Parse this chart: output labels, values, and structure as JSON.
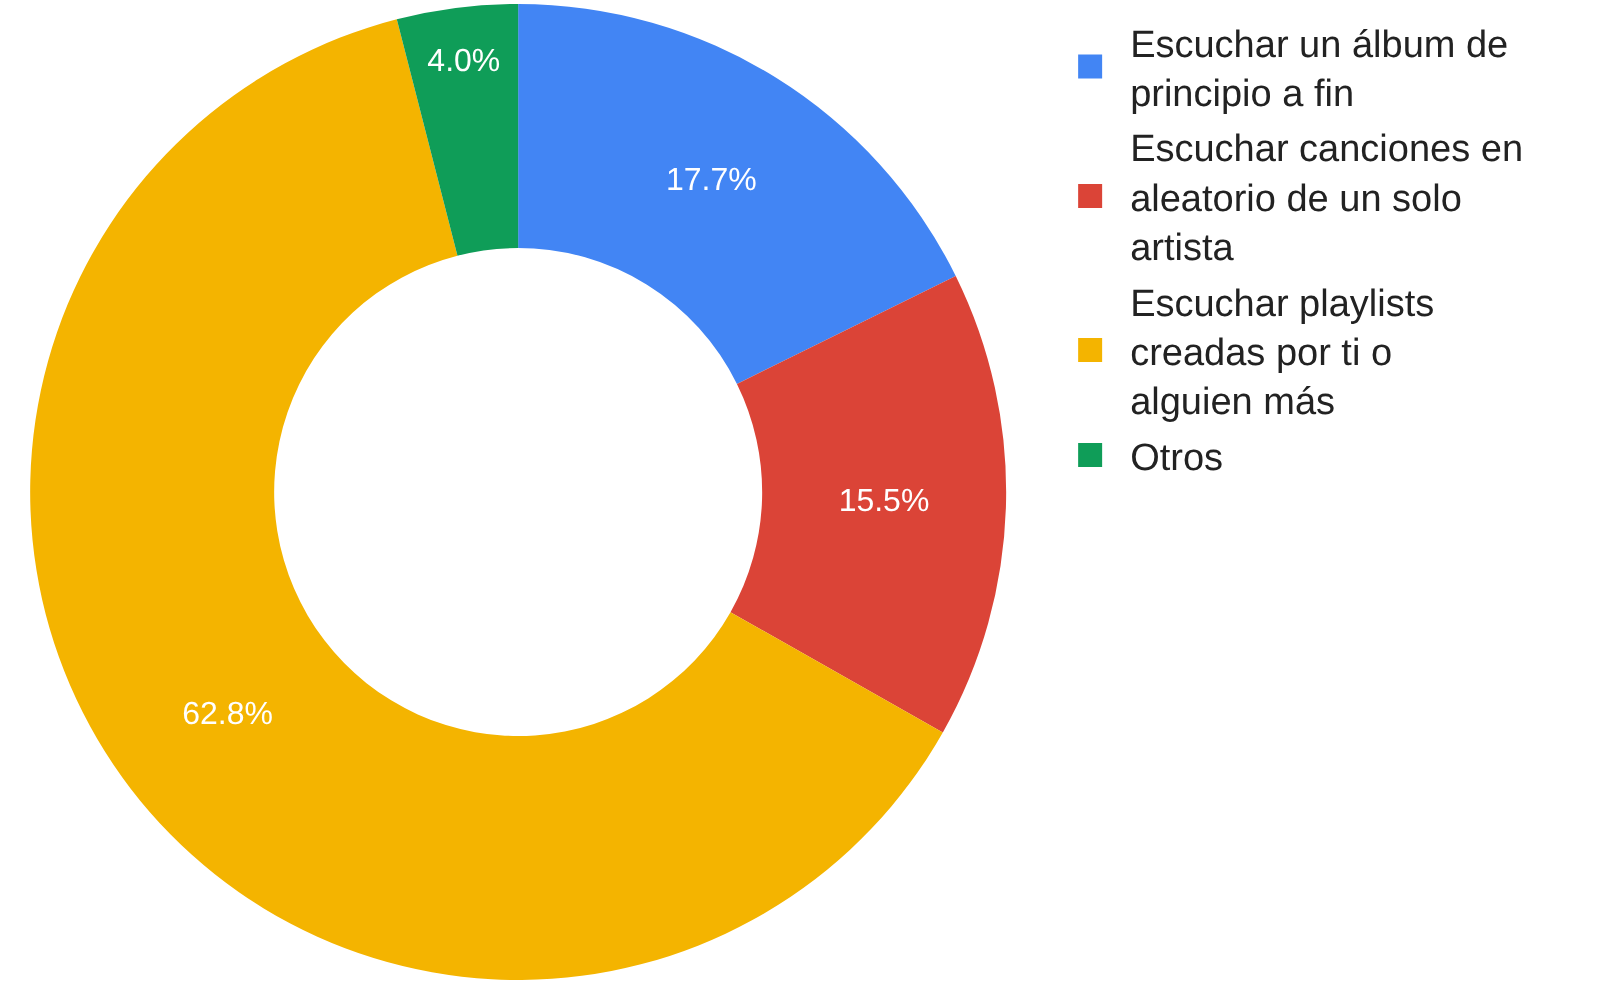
{
  "chart_data": {
    "type": "donut",
    "categories": [
      "Escuchar un álbum de principio a fin",
      "Escuchar canciones en aleatorio de un solo artista",
      "Escuchar playlists creadas por ti o alguien más",
      "Otros"
    ],
    "values": [
      17.7,
      15.5,
      62.8,
      4.0
    ],
    "value_labels": [
      "17.7%",
      "15.5%",
      "62.8%",
      "4.0%"
    ],
    "colors": [
      "#4285f4",
      "#db4437",
      "#f4b400",
      "#0f9d58"
    ],
    "legend": "right"
  }
}
